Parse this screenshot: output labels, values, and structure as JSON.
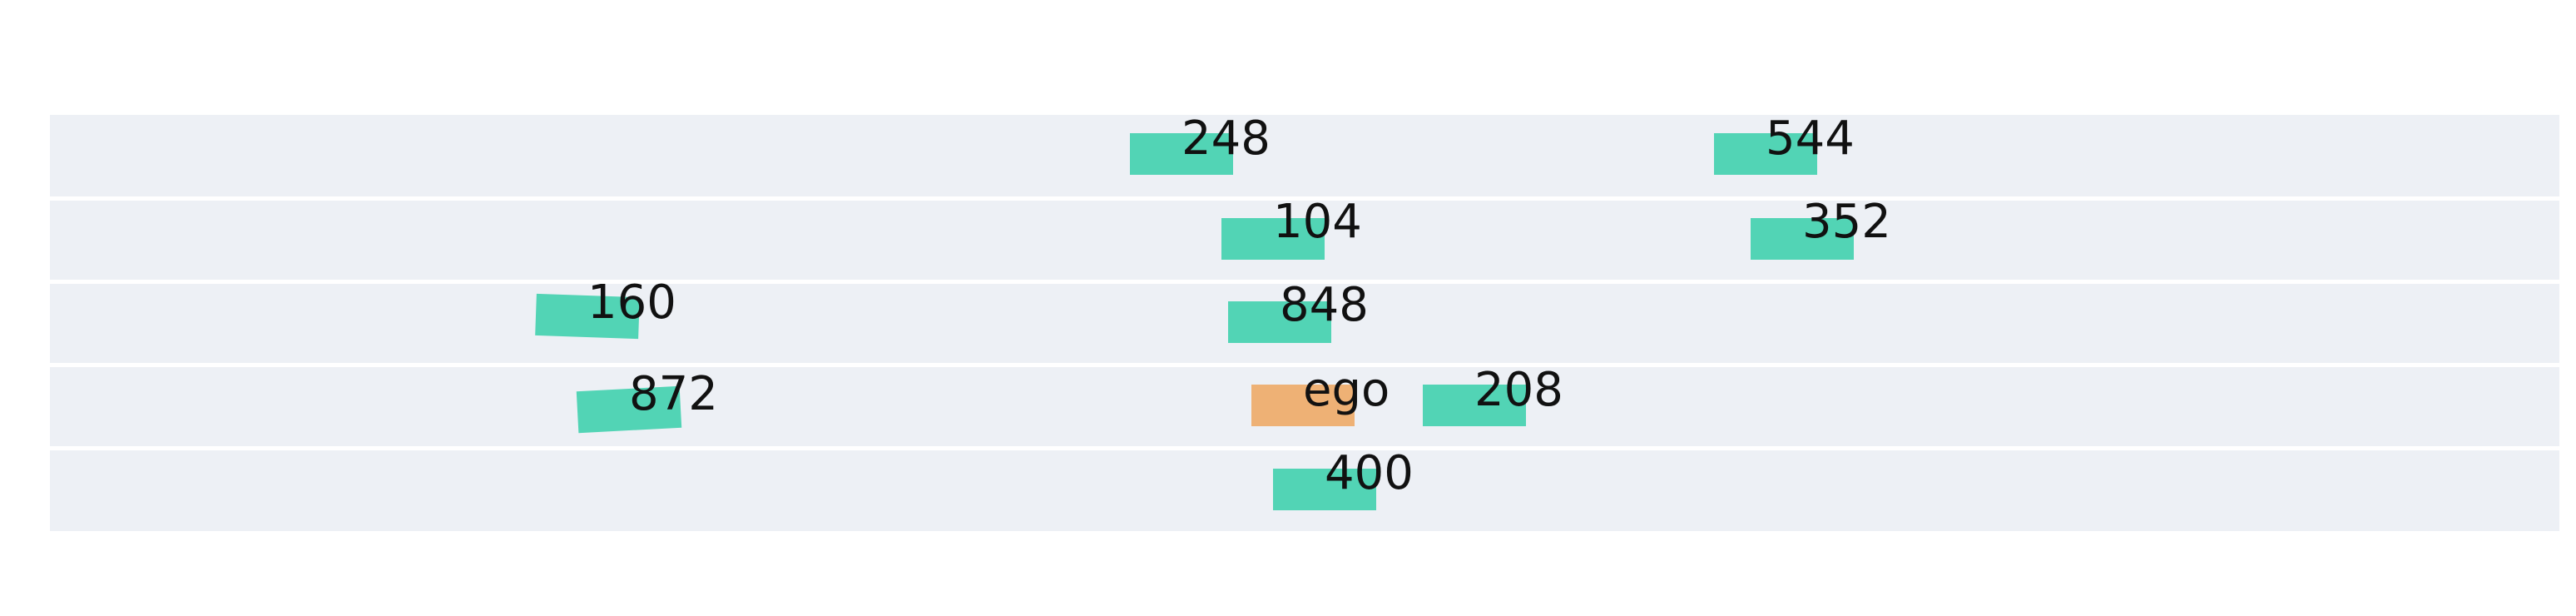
{
  "colors": {
    "background": "#ffffff",
    "lane_fill": "#edf0f5",
    "lane_divider": "#ffffff",
    "ego": "#eeb175",
    "vehicle": "#52d4b5",
    "label": "#111111"
  },
  "lanes": [
    "lane-1",
    "lane-2",
    "lane-3",
    "lane-4",
    "lane-5"
  ],
  "vehicles": [
    {
      "id": "v248",
      "label": "248",
      "lane": 0,
      "kind": "vehicle"
    },
    {
      "id": "v544",
      "label": "544",
      "lane": 0,
      "kind": "vehicle"
    },
    {
      "id": "v104",
      "label": "104",
      "lane": 1,
      "kind": "vehicle"
    },
    {
      "id": "v352",
      "label": "352",
      "lane": 1,
      "kind": "vehicle"
    },
    {
      "id": "v160",
      "label": "160",
      "lane": 2,
      "kind": "vehicle"
    },
    {
      "id": "v848",
      "label": "848",
      "lane": 2,
      "kind": "vehicle"
    },
    {
      "id": "v872",
      "label": "872",
      "lane": 3,
      "kind": "vehicle"
    },
    {
      "id": "ego",
      "label": "ego",
      "lane": 3,
      "kind": "ego"
    },
    {
      "id": "v208",
      "label": "208",
      "lane": 3,
      "kind": "vehicle"
    },
    {
      "id": "v400",
      "label": "400",
      "lane": 4,
      "kind": "vehicle"
    }
  ]
}
